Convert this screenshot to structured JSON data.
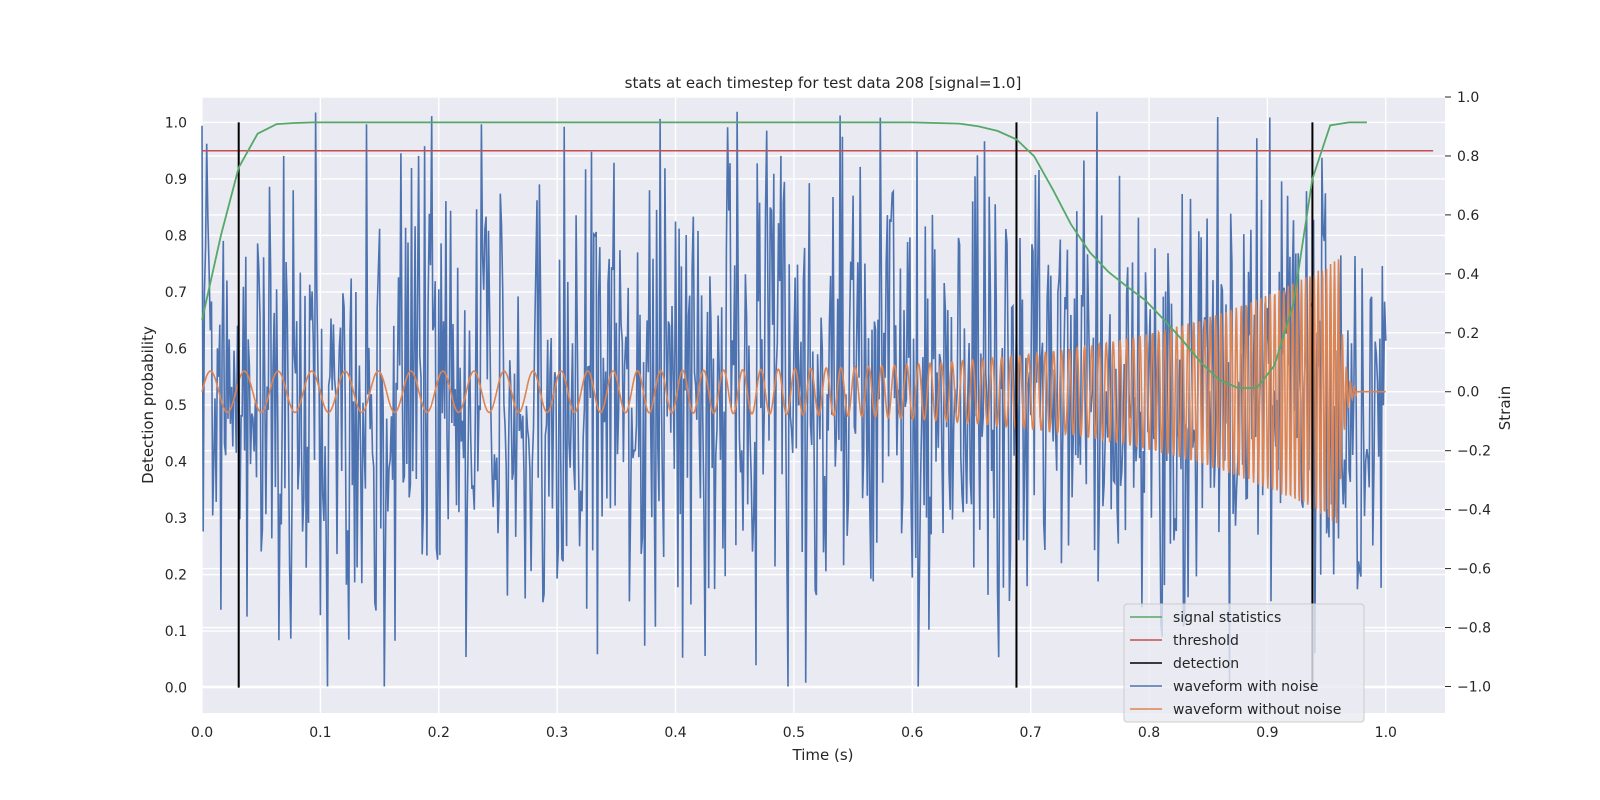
{
  "chart_data": {
    "type": "line",
    "title": "stats at each timestep for test data 208 [signal=1.0]",
    "xlabel": "Time (s)",
    "ylabel_left": "Detection probability",
    "ylabel_right": "Strain",
    "xlim": [
      0.0,
      1.05
    ],
    "ylim_left": [
      -0.045,
      1.045
    ],
    "ylim_right": [
      -1.09,
      1.0
    ],
    "x_ticks": [
      "0.0",
      "0.1",
      "0.2",
      "0.3",
      "0.4",
      "0.5",
      "0.6",
      "0.7",
      "0.8",
      "0.9",
      "1.0"
    ],
    "y_ticks_left": [
      "0.0",
      "0.1",
      "0.2",
      "0.3",
      "0.4",
      "0.5",
      "0.6",
      "0.7",
      "0.8",
      "0.9",
      "1.0"
    ],
    "y_ticks_right": [
      "−1.0",
      "−0.8",
      "−0.6",
      "−0.4",
      "−0.2",
      "0.0",
      "0.2",
      "0.4",
      "0.6",
      "0.8",
      "1.0"
    ],
    "grid": true,
    "legend_position": "bottom-right",
    "colors": {
      "signal_statistics": "#55a868",
      "threshold": "#c44e52",
      "detection": "#000000",
      "waveform_with_noise": "#4c72b0",
      "waveform_without_noise": "#dd8452",
      "axes_background": "#eaeaf2",
      "grid": "#ffffff"
    },
    "legend": [
      "signal statistics",
      "threshold",
      "detection",
      "waveform with noise",
      "waveform without noise"
    ],
    "signal_statistics": {
      "x": [
        0.0,
        0.016,
        0.031,
        0.047,
        0.063,
        0.078,
        0.094,
        0.2,
        0.4,
        0.6,
        0.64,
        0.656,
        0.672,
        0.688,
        0.703,
        0.719,
        0.734,
        0.75,
        0.766,
        0.781,
        0.797,
        0.813,
        0.828,
        0.844,
        0.859,
        0.875,
        0.891,
        0.906,
        0.922,
        0.938,
        0.953,
        0.969,
        0.984
      ],
      "y": [
        0.65,
        0.8,
        0.92,
        0.98,
        0.997,
        0.999,
        1.0,
        1.0,
        1.0,
        1.0,
        0.998,
        0.993,
        0.985,
        0.97,
        0.94,
        0.88,
        0.82,
        0.77,
        0.735,
        0.71,
        0.685,
        0.65,
        0.615,
        0.575,
        0.545,
        0.53,
        0.53,
        0.57,
        0.68,
        0.9,
        0.995,
        1.0,
        1.0
      ]
    },
    "threshold": {
      "y": 0.95,
      "x_range": [
        0.0,
        1.04
      ]
    },
    "detection": {
      "x": [
        0.031,
        0.688,
        0.938
      ],
      "y_range": [
        0.0,
        1.0
      ]
    },
    "waveform_with_noise": {
      "t_range": [
        0.0,
        1.0
      ],
      "num_samples": 1000,
      "amplitude": 0.95,
      "notable_points": [
        {
          "x": 0.016,
          "y": -0.74
        },
        {
          "x": 0.183,
          "y": 0.8
        },
        {
          "x": 0.223,
          "y": -0.9
        },
        {
          "x": 0.495,
          "y": -1.0
        },
        {
          "x": 0.573,
          "y": 0.93
        },
        {
          "x": 0.891,
          "y": 0.86
        }
      ]
    },
    "waveform_without_noise": {
      "t_range": [
        0.0,
        1.0
      ],
      "f_start_hz": 35,
      "f_end_hz": 300,
      "amplitude_start": 0.07,
      "peak_time": 0.96,
      "peak_amplitude": 0.45,
      "ringdown_end": 0.975
    }
  }
}
